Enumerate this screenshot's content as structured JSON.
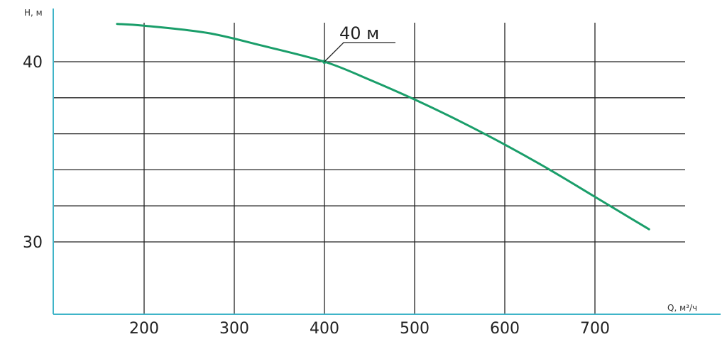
{
  "chart_data": {
    "type": "line",
    "title": "",
    "xlabel": "Q, м³/ч",
    "ylabel": "Н, м",
    "xlim": [
      100,
      1000
    ],
    "ylim": [
      26,
      43
    ],
    "x_ticks": [
      200,
      300,
      400,
      500,
      600,
      700
    ],
    "x_tick_labels": [
      "200",
      "300",
      "400",
      "500",
      "600",
      "700"
    ],
    "y_ticks": [
      30,
      40
    ],
    "y_tick_labels": [
      "30",
      "40"
    ],
    "y_gridlines": [
      30,
      32,
      34,
      36,
      38,
      40
    ],
    "grid": true,
    "legend": "none",
    "series": [
      {
        "color": "#1a9e6a",
        "x": [
          170,
          200,
          270,
          330,
          400,
          450,
          500,
          550,
          600,
          650,
          700,
          760
        ],
        "y": [
          42.1,
          42.0,
          41.6,
          40.9,
          40.0,
          39.0,
          37.9,
          36.7,
          35.4,
          34.0,
          32.5,
          30.7
        ]
      }
    ],
    "annotations": [
      {
        "text": "40 м",
        "x": 400,
        "y": 40
      }
    ],
    "colors": {
      "line": "#1a9e6a",
      "axis": "#3fb4c8",
      "grid": "#222222"
    }
  }
}
